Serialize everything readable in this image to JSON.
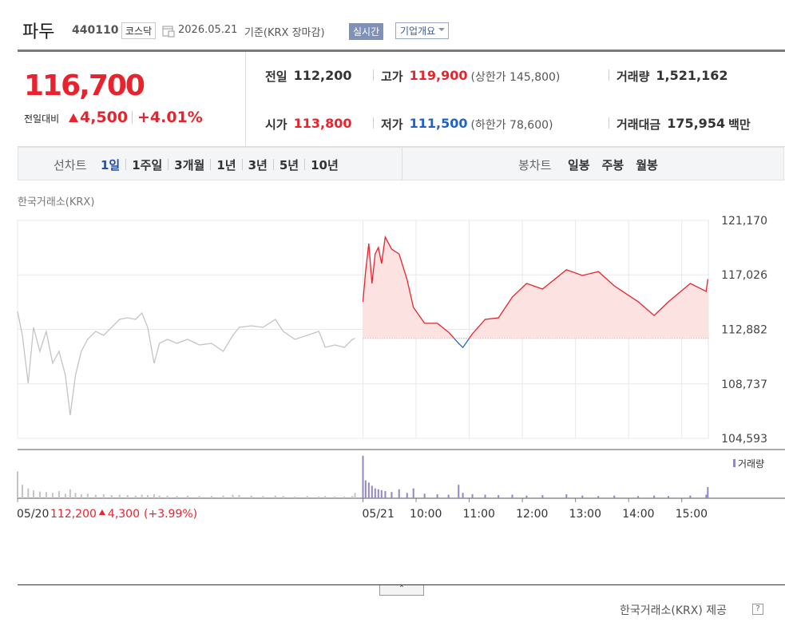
{
  "header": {
    "name": "파두",
    "code": "440110",
    "market": "코스닥",
    "date": "2026.05.21",
    "basis": "기준(KRX 장마감)",
    "realtime": "실시간",
    "company_info": "기업개요"
  },
  "quote": {
    "price": "116,700",
    "change_label": "전일대비",
    "change": "4,500",
    "change_pct": "+4.01%",
    "rows": [
      [
        {
          "label": "전일",
          "value": "112,200"
        },
        {
          "label": "고가",
          "value": "119,900",
          "note": "(상한가 145,800)"
        },
        {
          "label": "거래량",
          "value": "1,521,162"
        }
      ],
      [
        {
          "label": "시가",
          "value": "113,800"
        },
        {
          "label": "저가",
          "value": "111,500",
          "note": "(하한가 78,600)"
        },
        {
          "label": "거래대금",
          "value": "175,954",
          "unit": "백만"
        }
      ]
    ]
  },
  "tabs": {
    "line_label": "선차트",
    "line_periods": [
      "1일",
      "1주일",
      "3개월",
      "1년",
      "3년",
      "5년",
      "10년"
    ],
    "candle_label": "봉차트",
    "candle_periods": [
      "일봉",
      "주봉",
      "월봉"
    ]
  },
  "source": "한국거래소(KRX)",
  "chart_data": {
    "type": "line",
    "ylim": [
      104593,
      121170
    ],
    "yticks": [
      {
        "value": 104593,
        "label": "104,593"
      },
      {
        "value": 108737,
        "label": "108,737"
      },
      {
        "value": 112882,
        "label": "112,882"
      },
      {
        "value": 117026,
        "label": "117,026"
      },
      {
        "value": 121170,
        "label": "121,170"
      }
    ],
    "xlim": [
      0,
      13
    ],
    "xticks": [
      {
        "value": 0,
        "label": "05/20"
      },
      {
        "value": 6.5,
        "label": "05/21"
      },
      {
        "value": 7.5,
        "label": "10:00"
      },
      {
        "value": 8.5,
        "label": "11:00"
      },
      {
        "value": 9.5,
        "label": "12:00"
      },
      {
        "value": 10.5,
        "label": "13:00"
      },
      {
        "value": 11.5,
        "label": "14:00"
      },
      {
        "value": 12.5,
        "label": "15:00"
      }
    ],
    "grid": true,
    "baseline": 112200,
    "prev_close_note": {
      "price": "112,200",
      "change": "4,300",
      "change_pct": "(+3.99%)"
    },
    "volume_label": "거래량",
    "volume_color": "#9486c4",
    "volume_ylim": [
      0,
      100000
    ],
    "series": [
      {
        "color": "#c4c4c4",
        "volume_color": "#c4c4c4",
        "x": [
          0,
          0.09,
          0.2,
          0.3,
          0.42,
          0.54,
          0.66,
          0.78,
          0.9,
          0.99,
          1.09,
          1.2,
          1.32,
          1.47,
          1.62,
          1.77,
          1.92,
          2.07,
          2.22,
          2.34,
          2.45,
          2.57,
          2.67,
          2.82,
          3.0,
          3.2,
          3.42,
          3.65,
          3.87,
          4.05,
          4.17,
          4.4,
          4.62,
          4.85,
          5.0,
          5.22,
          5.45,
          5.67,
          5.79,
          5.97,
          6.15,
          6.3,
          6.35
        ],
        "values": [
          114248,
          112426,
          108783,
          113034,
          111212,
          112730,
          110301,
          111212,
          109390,
          106354,
          109390,
          111212,
          112123,
          112730,
          112426,
          113034,
          113641,
          113762,
          113641,
          114126,
          113034,
          110301,
          111820,
          112123,
          111820,
          112123,
          111698,
          111820,
          111212,
          112426,
          113034,
          113155,
          113034,
          113641,
          112730,
          112123,
          112426,
          112730,
          111515,
          111698,
          111515,
          112123,
          112200
        ],
        "volume": [
          60000,
          30000,
          22000,
          18000,
          15000,
          14000,
          12000,
          16000,
          10000,
          20000,
          12000,
          9000,
          10000,
          8000,
          9000,
          7000,
          8000,
          7000,
          6000,
          8000,
          7000,
          9000,
          6000,
          6000,
          5000,
          6000,
          5000,
          5000,
          6000,
          8000,
          7000,
          6000,
          5000,
          6000,
          5000,
          4000,
          5000,
          4000,
          5000,
          4000,
          4000,
          5000,
          12000
        ]
      },
      {
        "color": "#e8232e",
        "below_color": "#2a64c8",
        "fill": "#fde2e2",
        "volume_color": "#9486c4",
        "x": [
          6.5,
          6.55,
          6.61,
          6.67,
          6.73,
          6.79,
          6.85,
          6.92,
          7.04,
          7.18,
          7.33,
          7.45,
          7.66,
          7.9,
          8.11,
          8.3,
          8.38,
          8.56,
          8.8,
          9.05,
          9.31,
          9.58,
          9.88,
          10.33,
          10.63,
          10.93,
          11.23,
          11.68,
          11.98,
          12.25,
          12.66,
          12.96,
          12.99
        ],
        "values": [
          114980,
          117280,
          119410,
          116370,
          118620,
          119110,
          117890,
          119900,
          118980,
          118620,
          116680,
          114550,
          113340,
          113340,
          112670,
          111820,
          111500,
          112550,
          113640,
          113760,
          115340,
          116370,
          115950,
          117410,
          116980,
          117280,
          116190,
          114980,
          113940,
          114980,
          116370,
          115770,
          116700
        ],
        "volume": [
          95000,
          40000,
          35000,
          28000,
          22000,
          20000,
          18000,
          16000,
          14000,
          20000,
          12000,
          22000,
          10000,
          9000,
          8000,
          30000,
          12000,
          9000,
          8000,
          7000,
          8000,
          6000,
          7000,
          9000,
          6000,
          5000,
          6000,
          5000,
          6000,
          5000,
          6000,
          8000,
          25000
        ]
      }
    ]
  },
  "footer": "한국거래소(KRX) 제공"
}
